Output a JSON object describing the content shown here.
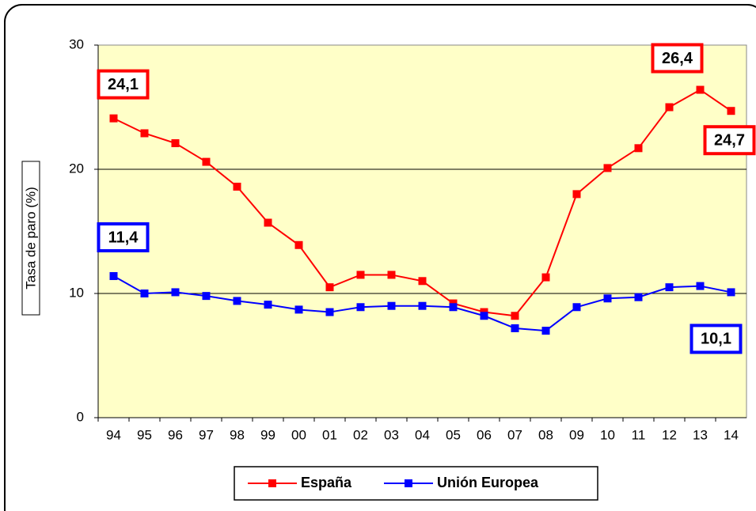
{
  "chart_data": {
    "type": "line",
    "y_label": "Tasa de paro (%)",
    "categories": [
      "94",
      "95",
      "96",
      "97",
      "98",
      "99",
      "00",
      "01",
      "02",
      "03",
      "04",
      "05",
      "06",
      "07",
      "08",
      "09",
      "10",
      "11",
      "12",
      "13",
      "14"
    ],
    "series": [
      {
        "name": "España",
        "color": "#ff0000",
        "values": [
          24.1,
          22.9,
          22.1,
          20.6,
          18.6,
          15.7,
          13.9,
          10.5,
          11.5,
          11.5,
          11.0,
          9.2,
          8.5,
          8.2,
          11.3,
          18.0,
          20.1,
          21.7,
          25.0,
          26.4,
          24.7
        ],
        "value_labels": [
          "24,1",
          null,
          null,
          null,
          null,
          null,
          null,
          null,
          null,
          null,
          null,
          null,
          null,
          null,
          null,
          null,
          null,
          null,
          null,
          "26,4",
          "24,7"
        ]
      },
      {
        "name": "Unión Europea",
        "color": "#0000ff",
        "values": [
          11.4,
          10.0,
          10.1,
          9.8,
          9.4,
          9.1,
          8.7,
          8.5,
          8.9,
          9.0,
          9.0,
          8.9,
          8.2,
          7.2,
          7.0,
          8.9,
          9.6,
          9.7,
          10.5,
          10.6,
          10.1
        ],
        "value_labels": [
          "11,4",
          null,
          null,
          null,
          null,
          null,
          null,
          null,
          null,
          null,
          null,
          null,
          null,
          null,
          null,
          null,
          null,
          null,
          null,
          null,
          "10,1"
        ]
      }
    ],
    "ylim": [
      0,
      30
    ],
    "yticks": [
      0,
      10,
      20,
      30
    ],
    "grid": true,
    "plot_background": "#ffffc8"
  }
}
